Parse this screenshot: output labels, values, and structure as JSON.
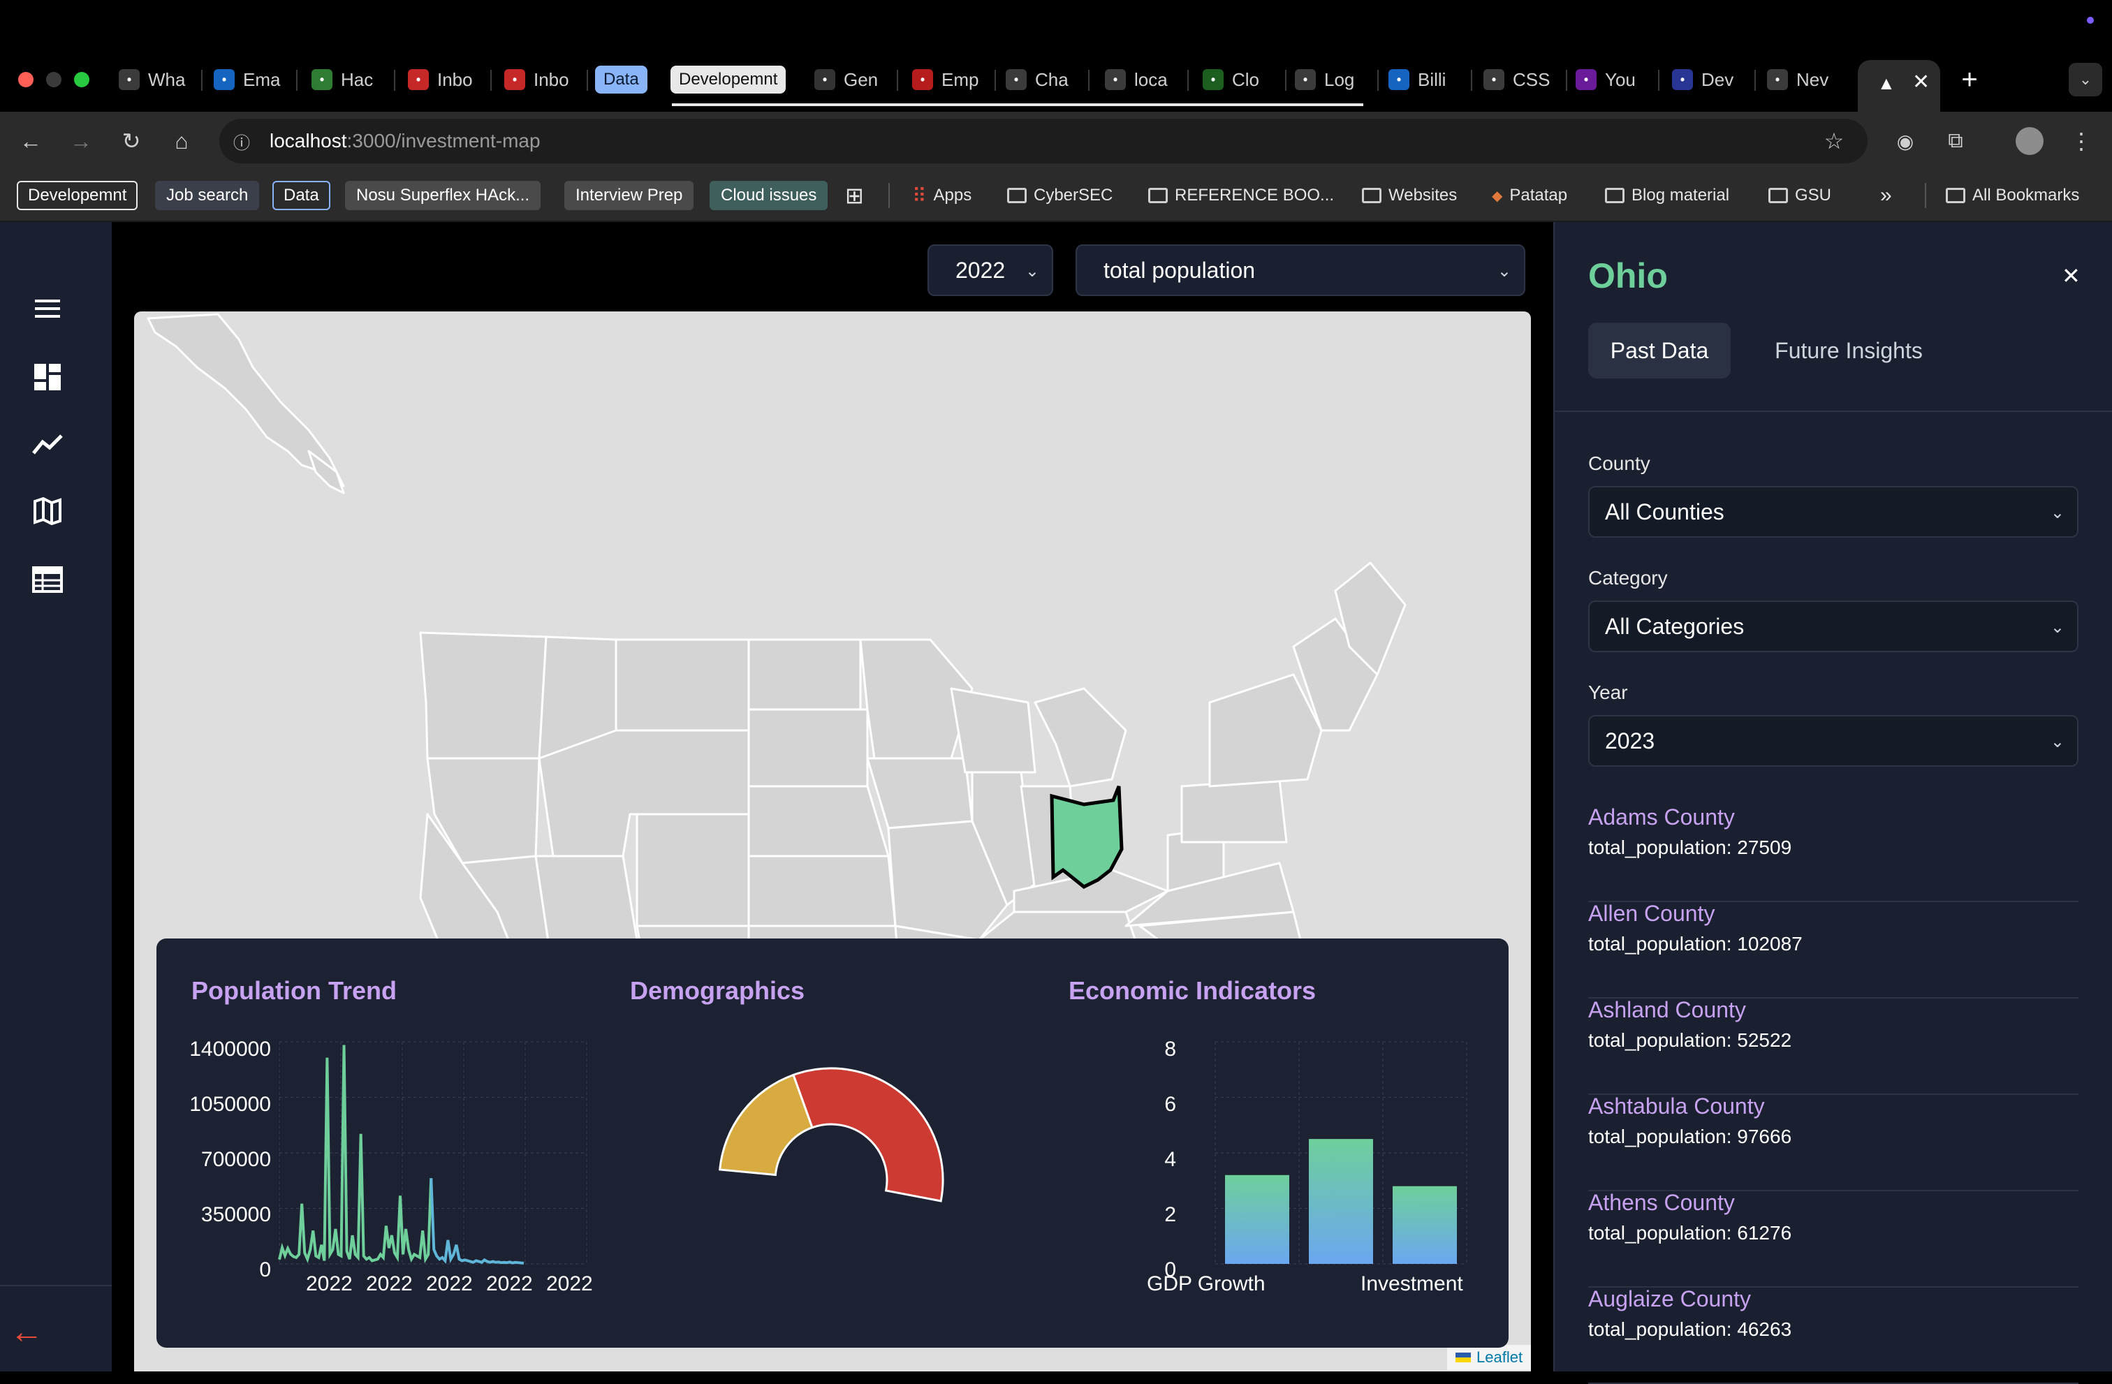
{
  "browser": {
    "tabs": [
      {
        "label": "Wha",
        "fav": "chatgpt-icon",
        "color": "#3b3b3b"
      },
      {
        "label": "Ema",
        "fav": "outlook-icon",
        "color": "#1565c0"
      },
      {
        "label": "Hac",
        "fav": "globe-icon",
        "color": "#2e7d32"
      },
      {
        "label": "Inbo",
        "fav": "gmail-icon",
        "color": "#c62828"
      },
      {
        "label": "Inbo",
        "fav": "gmail-icon",
        "color": "#c62828"
      },
      {
        "label": "Gen",
        "fav": "github-icon",
        "color": "#333333"
      },
      {
        "label": "Emp",
        "fav": "trello-icon",
        "color": "#b71c1c"
      },
      {
        "label": "Cha",
        "fav": "chatgpt-icon",
        "color": "#3b3b3b"
      },
      {
        "label": "loca",
        "fav": "vercel-icon",
        "color": "#3b3b3b"
      },
      {
        "label": "Clo",
        "fav": "mongodb-icon",
        "color": "#1b5e20"
      },
      {
        "label": "Log",
        "fav": "shield-icon",
        "color": "#3b3b3b"
      },
      {
        "label": "Billi",
        "fav": "gcp-icon",
        "color": "#1565c0"
      },
      {
        "label": "CSS",
        "fav": "codepen-icon",
        "color": "#3b3b3b"
      },
      {
        "label": "You",
        "fav": "youtube-icon",
        "color": "#6a1b9a"
      },
      {
        "label": "Dev",
        "fav": "d-icon",
        "color": "#283593"
      },
      {
        "label": "Nev",
        "fav": "vercel-icon",
        "color": "#3b3b3b"
      }
    ],
    "tab_groups": [
      {
        "label": "Data",
        "bg": "#8ab4f8",
        "fg": "#0b1a33"
      },
      {
        "label": "Developemnt",
        "bg": "#e8e8e8",
        "fg": "#111111"
      }
    ],
    "url_host": "localhost",
    "url_path": ":3000/investment-map",
    "bookmarks": [
      {
        "label": "Developemnt",
        "type": "chip"
      },
      {
        "label": "Job search",
        "type": "chip-blue"
      },
      {
        "label": "Data",
        "type": "chip-outline"
      },
      {
        "label": "Nosu Superflex HAck...",
        "type": "chip-gray"
      },
      {
        "label": "Interview Prep",
        "type": "chip-gray"
      },
      {
        "label": "Cloud issues",
        "type": "chip-teal"
      },
      {
        "label": "Apps",
        "type": "apps"
      },
      {
        "label": "CyberSEC",
        "type": "folder"
      },
      {
        "label": "REFERENCE BOO...",
        "type": "folder"
      },
      {
        "label": "Websites",
        "type": "folder"
      },
      {
        "label": "Patatap",
        "type": "site"
      },
      {
        "label": "Blog material",
        "type": "folder"
      },
      {
        "label": "GSU",
        "type": "folder"
      }
    ],
    "all_bookmarks": "All Bookmarks"
  },
  "filters": {
    "year": "2022",
    "metric": "total population"
  },
  "map": {
    "highlighted_state": "Ohio",
    "highlight_color": "#6ecf9b",
    "attribution": "Leaflet"
  },
  "panels": {
    "population_trend": {
      "title": "Population Trend",
      "y_ticks": [
        "1400000",
        "1050000",
        "700000",
        "350000",
        "0"
      ],
      "x_ticks": [
        "2022",
        "2022",
        "2022",
        "2022",
        "2022"
      ]
    },
    "demographics": {
      "title": "Demographics"
    },
    "economic": {
      "title": "Economic Indicators",
      "y_ticks": [
        "8",
        "6",
        "4",
        "2",
        "0"
      ],
      "x_ticks": [
        "GDP Growth",
        "Investment"
      ]
    }
  },
  "chart_data": [
    {
      "type": "line",
      "title": "Population Trend",
      "x": [
        0,
        1,
        2,
        3,
        4,
        5,
        6,
        7,
        8,
        9,
        10,
        11,
        12,
        13,
        14,
        15,
        16,
        17,
        18,
        19,
        20,
        21,
        22,
        23,
        24,
        25,
        26,
        27,
        28,
        29,
        30,
        31,
        32,
        33,
        34,
        35,
        36,
        37,
        38,
        39,
        40,
        41,
        42,
        43,
        44,
        45,
        46,
        47,
        48,
        49,
        50,
        51,
        52,
        53,
        54,
        55,
        56,
        57,
        58,
        59,
        60,
        61,
        62,
        63,
        64,
        65,
        66,
        67,
        68,
        69,
        70,
        71,
        72,
        73,
        74,
        75,
        76,
        77,
        78,
        79,
        80,
        81,
        82,
        83,
        84,
        85,
        86,
        87
      ],
      "values": [
        27509,
        102087,
        52522,
        97666,
        61276,
        46263,
        40000,
        60000,
        380000,
        70000,
        30000,
        90000,
        210000,
        50000,
        40000,
        120000,
        20000,
        1300000,
        60000,
        90000,
        220000,
        60000,
        50000,
        1380000,
        80000,
        30000,
        180000,
        60000,
        40000,
        820000,
        50000,
        30000,
        40000,
        20000,
        25000,
        30000,
        60000,
        40000,
        240000,
        100000,
        180000,
        70000,
        40000,
        430000,
        60000,
        220000,
        90000,
        30000,
        60000,
        50000,
        40000,
        210000,
        30000,
        60000,
        540000,
        90000,
        50000,
        30000,
        40000,
        20000,
        150000,
        30000,
        60000,
        120000,
        30000,
        20000,
        25000,
        20000,
        15000,
        10000,
        20000,
        15000,
        10000,
        25000,
        15000,
        10000,
        15000,
        10000,
        12000,
        8000,
        10000,
        8000,
        12000,
        6000,
        10000,
        8000,
        6000,
        5000
      ],
      "x_tick_labels": [
        "2022",
        "2022",
        "2022",
        "2022",
        "2022"
      ],
      "ylim": [
        0,
        1400000
      ],
      "y_ticks": [
        0,
        350000,
        700000,
        1050000,
        1400000
      ],
      "series_colors": [
        "#6ecf9b",
        "#5fb6d8"
      ],
      "grid": true
    },
    {
      "type": "pie",
      "title": "Demographics",
      "style": "half-doughnut",
      "slices": [
        {
          "value": 35,
          "color": "#d7ab3f"
        },
        {
          "value": 65,
          "color": "#cc3a32"
        }
      ]
    },
    {
      "type": "bar",
      "title": "Economic Indicators",
      "categories": [
        "GDP Growth",
        "",
        "Investment"
      ],
      "values": [
        3.2,
        4.5,
        2.8
      ],
      "ylim": [
        0,
        8
      ],
      "y_ticks": [
        0,
        2,
        4,
        6,
        8
      ],
      "bar_gradient": [
        "#6ecf9b",
        "#6ba7f0"
      ],
      "grid": true
    }
  ],
  "details": {
    "state": "Ohio",
    "tabs": [
      "Past Data",
      "Future Insights"
    ],
    "county_label": "County",
    "county_value": "All Counties",
    "category_label": "Category",
    "category_value": "All Categories",
    "year_label": "Year",
    "year_value": "2023",
    "counties": [
      {
        "name": "Adams County",
        "value": "total_population: 27509"
      },
      {
        "name": "Allen County",
        "value": "total_population: 102087"
      },
      {
        "name": "Ashland County",
        "value": "total_population: 52522"
      },
      {
        "name": "Ashtabula County",
        "value": "total_population: 97666"
      },
      {
        "name": "Athens County",
        "value": "total_population: 61276"
      },
      {
        "name": "Auglaize County",
        "value": "total_population: 46263"
      }
    ]
  }
}
